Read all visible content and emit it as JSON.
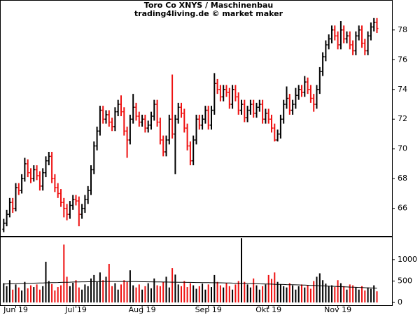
{
  "chart_data": [
    {
      "type": "ohlc",
      "title": "Toro Co XNYS / Maschinenbau",
      "subtitle": "trading4living.de © market maker",
      "up_color": "#000000",
      "down_color": "#ee1111",
      "xlim": [
        -1,
        129
      ],
      "ylim": [
        64.15,
        79.92
      ],
      "yticks": [
        66,
        68,
        70,
        72,
        74,
        76,
        78
      ],
      "open": [
        64.6,
        65.0,
        65.6,
        66.4,
        66.0,
        67.4,
        67.2,
        68.0,
        69.0,
        68.4,
        68.0,
        68.6,
        68.2,
        67.5,
        68.4,
        69.2,
        69.5,
        68.0,
        67.4,
        67.0,
        66.4,
        66.0,
        65.6,
        66.2,
        66.6,
        66.5,
        65.6,
        66.0,
        66.6,
        67.2,
        68.6,
        70.2,
        71.2,
        72.6,
        72.0,
        72.3,
        71.8,
        71.5,
        72.5,
        73.0,
        72.5,
        71.2,
        70.6,
        72.0,
        72.8,
        72.2,
        71.8,
        72.0,
        71.4,
        71.6,
        72.2,
        73.0,
        71.8,
        70.6,
        69.8,
        70.6,
        72.0,
        71.0,
        72.0,
        72.8,
        72.4,
        71.4,
        70.2,
        69.2,
        70.6,
        72.0,
        71.6,
        72.0,
        72.6,
        71.6,
        72.6,
        74.4,
        74.0,
        73.5,
        74.0,
        73.8,
        73.0,
        74.0,
        73.5,
        72.6,
        73.0,
        72.1,
        72.6,
        73.0,
        72.4,
        72.8,
        73.0,
        72.0,
        72.4,
        72.0,
        71.4,
        70.6,
        71.0,
        72.0,
        73.0,
        73.4,
        72.6,
        73.0,
        73.6,
        74.0,
        73.8,
        74.5,
        74.0,
        73.4,
        73.0,
        74.0,
        75.2,
        76.2,
        77.0,
        77.4,
        78.0,
        77.6,
        77.0,
        78.0,
        77.4,
        77.6,
        77.0,
        76.6,
        77.6,
        78.0,
        77.1,
        76.6,
        77.6,
        78.2,
        78.5
      ],
      "high": [
        65.3,
        65.9,
        66.7,
        66.7,
        67.7,
        67.7,
        68.3,
        69.4,
        69.3,
        68.7,
        68.9,
        68.9,
        68.5,
        68.7,
        69.5,
        69.8,
        69.8,
        68.3,
        67.7,
        67.3,
        66.7,
        66.3,
        66.5,
        66.9,
        66.9,
        66.8,
        66.3,
        66.9,
        67.5,
        68.9,
        70.5,
        71.5,
        72.9,
        72.9,
        72.6,
        72.6,
        72.1,
        72.8,
        73.3,
        73.6,
        72.8,
        71.5,
        72.3,
        73.7,
        73.1,
        72.5,
        72.3,
        72.3,
        71.9,
        72.5,
        73.3,
        73.3,
        72.1,
        70.9,
        70.9,
        72.3,
        75.0,
        72.3,
        73.1,
        73.1,
        72.7,
        71.7,
        70.5,
        70.9,
        72.3,
        72.3,
        72.3,
        72.9,
        72.9,
        72.9,
        75.1,
        74.7,
        74.3,
        74.3,
        74.3,
        74.1,
        74.3,
        74.3,
        73.8,
        73.3,
        73.3,
        72.9,
        73.3,
        73.3,
        73.1,
        73.3,
        73.3,
        72.7,
        72.7,
        72.3,
        71.7,
        71.3,
        72.3,
        73.3,
        74.2,
        73.7,
        73.3,
        74.1,
        74.3,
        74.3,
        74.9,
        74.8,
        74.3,
        73.7,
        74.3,
        75.5,
        76.5,
        77.3,
        77.7,
        78.3,
        78.3,
        77.9,
        78.6,
        78.3,
        77.9,
        77.9,
        77.3,
        77.9,
        78.3,
        78.3,
        77.4,
        77.9,
        78.5,
        78.8,
        78.8
      ],
      "low": [
        64.4,
        64.8,
        65.4,
        65.7,
        65.8,
        66.9,
        67.0,
        67.8,
        68.1,
        67.7,
        67.8,
        67.9,
        67.2,
        67.2,
        68.1,
        68.9,
        67.7,
        67.1,
        66.7,
        66.1,
        65.4,
        65.2,
        65.3,
        65.9,
        66.2,
        64.8,
        65.3,
        65.7,
        66.3,
        66.9,
        68.3,
        69.9,
        70.9,
        71.7,
        71.7,
        71.5,
        71.2,
        71.2,
        72.2,
        72.2,
        70.9,
        69.4,
        70.3,
        71.7,
        71.9,
        71.5,
        71.5,
        71.1,
        71.1,
        71.3,
        71.9,
        71.5,
        70.3,
        69.5,
        69.5,
        70.3,
        70.7,
        68.3,
        71.7,
        72.1,
        71.1,
        69.9,
        68.9,
        68.9,
        70.3,
        71.3,
        71.3,
        71.7,
        71.3,
        71.3,
        72.3,
        73.7,
        73.2,
        73.2,
        73.5,
        72.7,
        72.7,
        73.2,
        72.3,
        72.3,
        71.8,
        71.8,
        72.3,
        72.1,
        72.1,
        72.5,
        71.7,
        71.7,
        71.7,
        71.1,
        70.5,
        70.5,
        70.7,
        71.7,
        72.7,
        72.3,
        72.3,
        72.7,
        73.3,
        73.5,
        73.5,
        73.7,
        73.1,
        72.5,
        72.7,
        73.7,
        74.9,
        75.9,
        76.7,
        77.1,
        77.3,
        76.7,
        76.7,
        77.1,
        77.1,
        76.7,
        76.3,
        76.3,
        77.3,
        76.8,
        76.3,
        76.3,
        77.3,
        77.9,
        77.8
      ],
      "close": [
        65.0,
        65.6,
        66.4,
        66.0,
        67.4,
        67.2,
        68.0,
        69.0,
        68.4,
        68.0,
        68.6,
        68.2,
        67.5,
        68.4,
        69.2,
        69.5,
        68.0,
        67.4,
        67.0,
        66.4,
        66.0,
        65.6,
        66.2,
        66.6,
        66.5,
        65.6,
        66.0,
        66.6,
        67.2,
        68.6,
        70.2,
        71.2,
        72.6,
        72.0,
        72.3,
        71.8,
        71.5,
        72.5,
        73.0,
        72.5,
        71.2,
        70.6,
        72.0,
        72.8,
        72.2,
        71.8,
        72.0,
        71.4,
        71.6,
        72.2,
        73.0,
        71.8,
        70.6,
        69.8,
        70.6,
        72.0,
        71.0,
        72.0,
        72.8,
        72.4,
        71.4,
        70.2,
        69.2,
        70.6,
        72.0,
        71.6,
        72.0,
        72.6,
        71.6,
        72.6,
        74.4,
        74.0,
        73.5,
        74.0,
        73.8,
        73.0,
        74.0,
        73.5,
        72.6,
        73.0,
        72.1,
        72.6,
        73.0,
        72.4,
        72.8,
        73.0,
        72.0,
        72.4,
        72.0,
        71.4,
        70.6,
        71.0,
        72.0,
        73.0,
        73.4,
        72.6,
        73.0,
        73.6,
        74.0,
        73.8,
        74.5,
        74.0,
        73.4,
        73.0,
        74.0,
        75.2,
        76.2,
        77.0,
        77.4,
        78.0,
        77.6,
        77.0,
        78.0,
        77.4,
        77.6,
        77.0,
        76.6,
        77.6,
        78.0,
        77.1,
        76.6,
        77.6,
        78.2,
        78.5,
        78.1
      ]
    },
    {
      "type": "volume",
      "up_color": "#000000",
      "down_color": "#ee1111",
      "average_color": "#000000",
      "xlim": [
        -1,
        129
      ],
      "ylim": [
        -80,
        1520
      ],
      "yticks": [
        0,
        500,
        1000
      ],
      "xticks": [
        {
          "value": 4,
          "label": "Jun 19"
        },
        {
          "value": 24,
          "label": "Jul 19"
        },
        {
          "value": 46,
          "label": "Aug 19"
        },
        {
          "value": 68,
          "label": "Sep 19"
        },
        {
          "value": 88,
          "label": "Okt 19"
        },
        {
          "value": 111,
          "label": "Nov 19"
        }
      ],
      "values": [
        450,
        380,
        520,
        300,
        420,
        350,
        280,
        480,
        330,
        400,
        360,
        420,
        300,
        380,
        950,
        500,
        430,
        280,
        360,
        400,
        1350,
        600,
        380,
        460,
        520,
        350,
        300,
        420,
        380,
        560,
        640,
        480,
        700,
        520,
        600,
        900,
        380,
        450,
        300,
        420,
        520,
        480,
        750,
        400,
        350,
        420,
        300,
        380,
        450,
        330,
        560,
        400,
        380,
        480,
        600,
        350,
        800,
        650,
        420,
        380,
        500,
        360,
        450,
        400,
        320,
        380,
        440,
        300,
        420,
        360,
        640,
        480,
        400,
        350,
        450,
        380,
        300,
        420,
        500,
        1500,
        480,
        420,
        350,
        560,
        400,
        300,
        380,
        420,
        640,
        550,
        700,
        480,
        420,
        380,
        350,
        450,
        400,
        300,
        380,
        420,
        350,
        400,
        320,
        500,
        600,
        680,
        520,
        440,
        380,
        400,
        360,
        520,
        450,
        380,
        300,
        420,
        400,
        350,
        300,
        380,
        280,
        350,
        320,
        400,
        260
      ],
      "average": [
        430,
        432,
        434,
        436,
        438,
        440,
        442,
        444,
        446,
        448,
        450,
        452,
        454,
        456,
        458,
        460,
        462,
        464,
        466,
        468,
        470,
        472,
        474,
        476,
        478,
        480,
        481,
        482,
        483,
        484,
        485,
        486,
        487,
        488,
        489,
        490,
        490,
        490,
        490,
        490,
        490,
        489,
        488,
        487,
        486,
        485,
        484,
        483,
        482,
        481,
        480,
        479,
        478,
        477,
        476,
        475,
        474,
        473,
        472,
        471,
        470,
        469,
        468,
        467,
        466,
        465,
        464,
        463,
        462,
        461,
        460,
        459,
        458,
        457,
        456,
        455,
        453,
        451,
        449,
        447,
        445,
        443,
        441,
        439,
        437,
        435,
        433,
        431,
        429,
        427,
        425,
        423,
        421,
        419,
        417,
        415,
        413,
        411,
        409,
        407,
        405,
        402,
        399,
        396,
        393,
        390,
        387,
        384,
        381,
        378,
        375,
        372,
        369,
        366,
        363,
        360,
        357,
        354,
        351,
        348,
        345,
        342,
        339,
        336,
        333
      ]
    }
  ]
}
